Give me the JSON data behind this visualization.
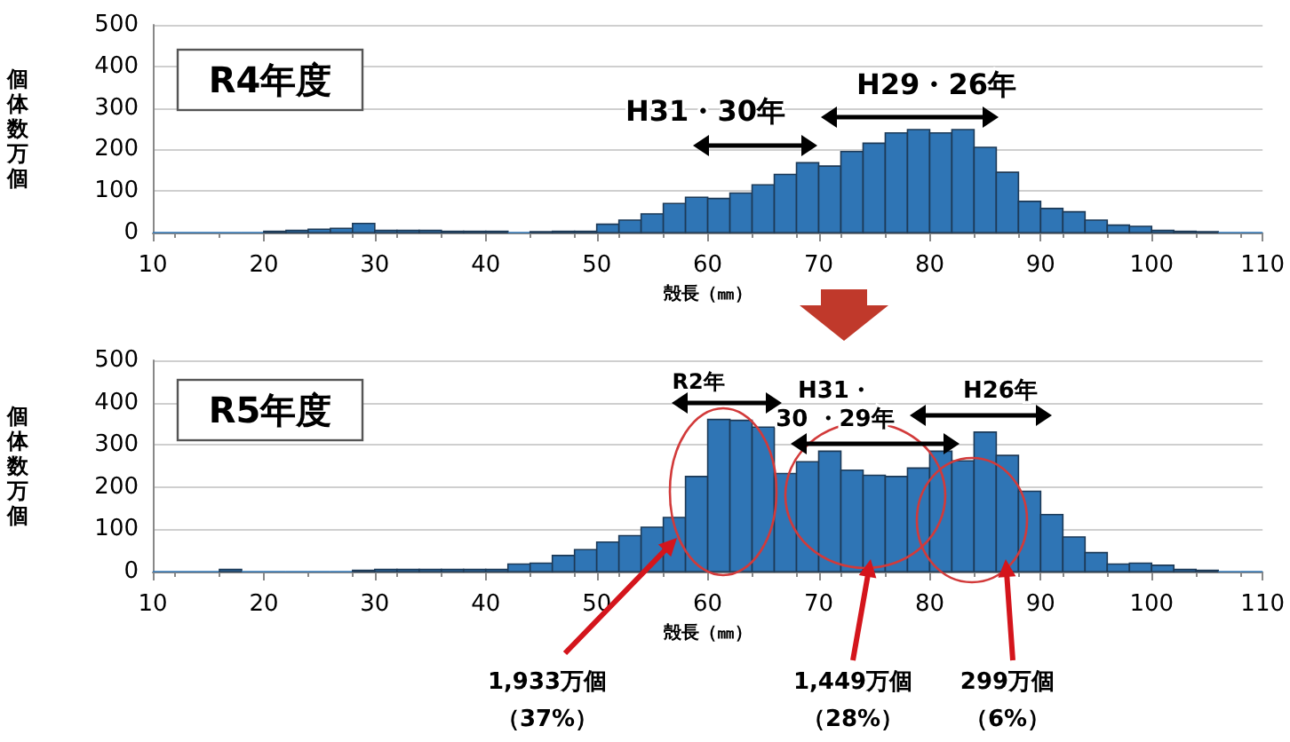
{
  "chart_data": [
    {
      "type": "histogram",
      "xlabel": "殻長（㎜）",
      "ylabel": "個体数万個",
      "color": "#2f75b5",
      "bins": [
        10,
        12,
        14,
        16,
        18,
        20,
        22,
        24,
        26,
        28,
        30,
        32,
        34,
        36,
        38,
        40,
        42,
        44,
        46,
        48,
        50,
        52,
        54,
        56,
        58,
        60,
        62,
        64,
        66,
        68,
        70,
        72,
        74,
        76,
        78,
        80,
        82,
        84,
        86,
        88,
        90,
        92,
        94,
        96,
        98,
        100,
        102,
        104,
        106,
        108,
        110
      ],
      "values": [
        0,
        0,
        0,
        0,
        0,
        3,
        5,
        8,
        10,
        22,
        5,
        5,
        5,
        3,
        3,
        3,
        0,
        2,
        3,
        3,
        20,
        30,
        45,
        70,
        85,
        82,
        95,
        115,
        140,
        168,
        160,
        195,
        215,
        240,
        248,
        240,
        248,
        205,
        145,
        75,
        58,
        50,
        30,
        18,
        15,
        5,
        3,
        2,
        0,
        0
      ],
      "xlim": [
        10,
        110
      ],
      "xticks": [
        10,
        20,
        30,
        40,
        50,
        60,
        70,
        80,
        90,
        100,
        110
      ],
      "ylim": [
        0,
        500
      ],
      "yticks": [
        0,
        100,
        200,
        300,
        400,
        500
      ],
      "grid": "y",
      "annotations": [
        "R4年度",
        "H31・30年",
        "H29・26年"
      ]
    },
    {
      "type": "histogram",
      "xlabel": "殻長（㎜）",
      "ylabel": "個体数万個",
      "color": "#2f75b5",
      "bins": [
        10,
        12,
        14,
        16,
        18,
        20,
        22,
        24,
        26,
        28,
        30,
        32,
        34,
        36,
        38,
        40,
        42,
        44,
        46,
        48,
        50,
        52,
        54,
        56,
        58,
        60,
        62,
        64,
        66,
        68,
        70,
        72,
        74,
        76,
        78,
        80,
        82,
        84,
        86,
        88,
        90,
        92,
        94,
        96,
        98,
        100,
        102,
        104,
        106,
        108,
        110
      ],
      "values": [
        0,
        0,
        0,
        5,
        0,
        0,
        0,
        0,
        0,
        3,
        5,
        5,
        5,
        5,
        5,
        5,
        18,
        20,
        38,
        52,
        70,
        85,
        105,
        128,
        225,
        360,
        358,
        342,
        232,
        260,
        285,
        240,
        228,
        225,
        245,
        285,
        262,
        330,
        275,
        190,
        135,
        82,
        45,
        18,
        20,
        15,
        5,
        3,
        0,
        0
      ],
      "xlim": [
        10,
        110
      ],
      "xticks": [
        10,
        20,
        30,
        40,
        50,
        60,
        70,
        80,
        90,
        100,
        110
      ],
      "ylim": [
        0,
        500
      ],
      "yticks": [
        0,
        100,
        200,
        300,
        400,
        500
      ],
      "grid": "y",
      "annotations": [
        "R5年度",
        "R2年",
        "H31・\n30 ・29年",
        "H26年",
        "1,933万個（37%）",
        "1,449万個（28%）",
        "299万個（6%）"
      ]
    }
  ]
}
